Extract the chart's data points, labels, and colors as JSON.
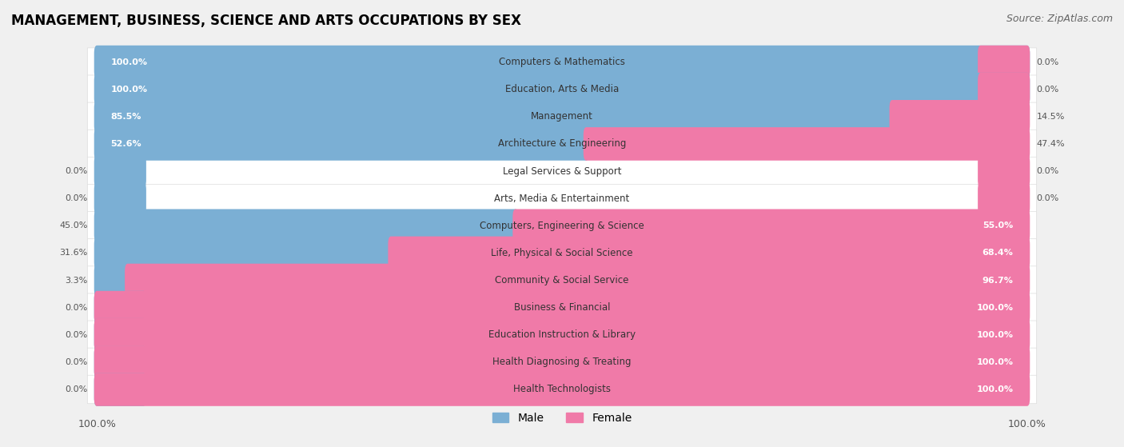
{
  "title": "MANAGEMENT, BUSINESS, SCIENCE AND ARTS OCCUPATIONS BY SEX",
  "source": "Source: ZipAtlas.com",
  "categories": [
    "Computers & Mathematics",
    "Education, Arts & Media",
    "Management",
    "Architecture & Engineering",
    "Legal Services & Support",
    "Arts, Media & Entertainment",
    "Computers, Engineering & Science",
    "Life, Physical & Social Science",
    "Community & Social Service",
    "Business & Financial",
    "Education Instruction & Library",
    "Health Diagnosing & Treating",
    "Health Technologists"
  ],
  "male": [
    100.0,
    100.0,
    85.5,
    52.6,
    0.0,
    0.0,
    45.0,
    31.6,
    3.3,
    0.0,
    0.0,
    0.0,
    0.0
  ],
  "female": [
    0.0,
    0.0,
    14.5,
    47.4,
    0.0,
    0.0,
    55.0,
    68.4,
    96.7,
    100.0,
    100.0,
    100.0,
    100.0
  ],
  "male_color": "#7bafd4",
  "female_color": "#f07aa8",
  "bg_color": "#f0f0f0",
  "row_bg_color": "#ffffff",
  "title_fontsize": 12,
  "source_fontsize": 9,
  "label_fontsize": 8.5,
  "pct_fontsize": 8,
  "legend_fontsize": 10,
  "bar_height": 0.62,
  "figsize": [
    14.06,
    5.59
  ],
  "dpi": 100
}
